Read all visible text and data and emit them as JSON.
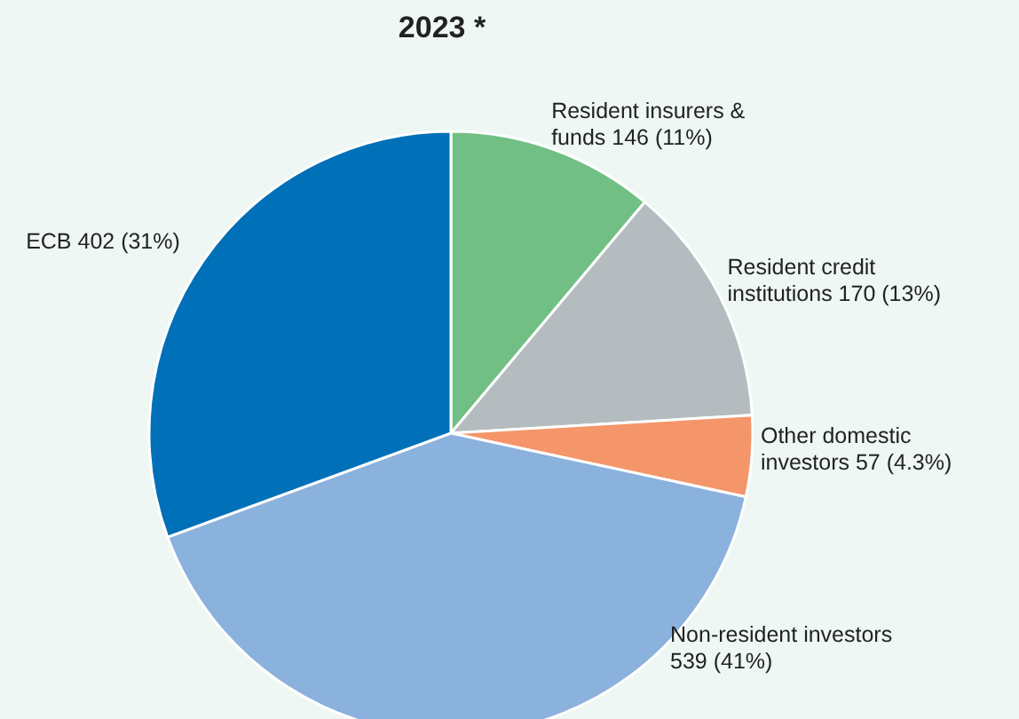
{
  "chart_data": {
    "type": "pie",
    "title": "2023 *",
    "categories": [
      "Resident insurers & funds",
      "Resident credit institutions",
      "Other domestic investors",
      "Non-resident investors",
      "ECB"
    ],
    "values": [
      146,
      170,
      57,
      539,
      402
    ],
    "value_labels": [
      "146  (11%)",
      "170 (13%)",
      "57 (4.3%)",
      "539 (41%)",
      "402 (31%)"
    ],
    "colors": [
      "#72bf85",
      "#b4bcbf",
      "#f4956a",
      "#8bb1dd",
      "#0070b8"
    ],
    "legend": false
  }
}
